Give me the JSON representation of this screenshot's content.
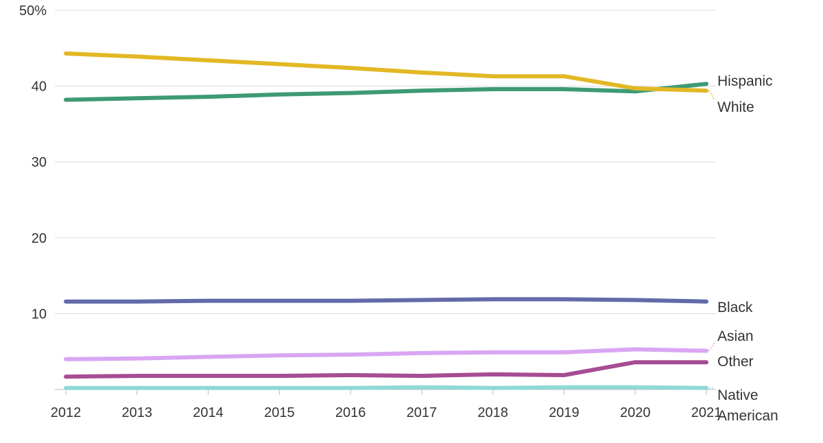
{
  "chart_data": {
    "type": "line",
    "title": "",
    "xlabel": "",
    "ylabel": "",
    "x": [
      "2012",
      "2013",
      "2014",
      "2015",
      "2016",
      "2017",
      "2018",
      "2019",
      "2020",
      "2021"
    ],
    "ylim": [
      0,
      50
    ],
    "yticks": [
      {
        "value": 0,
        "label": ""
      },
      {
        "value": 10,
        "label": "10"
      },
      {
        "value": 20,
        "label": "20"
      },
      {
        "value": 30,
        "label": "30"
      },
      {
        "value": 40,
        "label": "40"
      },
      {
        "value": 50,
        "label": "50%"
      }
    ],
    "grid": true,
    "legend": "direct labels at line ends",
    "series": [
      {
        "name": "White",
        "label_lines": [
          "White"
        ],
        "color": "#e2b824",
        "values": [
          44.3,
          43.9,
          43.4,
          42.9,
          42.4,
          41.8,
          41.3,
          41.3,
          39.7,
          39.4
        ]
      },
      {
        "name": "Hispanic",
        "label_lines": [
          "Hispanic"
        ],
        "color": "#3e9a74",
        "values": [
          38.2,
          38.4,
          38.6,
          38.9,
          39.1,
          39.4,
          39.6,
          39.6,
          39.3,
          40.3
        ]
      },
      {
        "name": "Black",
        "label_lines": [
          "Black"
        ],
        "color": "#626aaa",
        "values": [
          11.6,
          11.6,
          11.7,
          11.7,
          11.7,
          11.8,
          11.9,
          11.9,
          11.8,
          11.6
        ]
      },
      {
        "name": "Asian",
        "label_lines": [
          "Asian"
        ],
        "color": "#d9a6f3",
        "values": [
          4.0,
          4.1,
          4.3,
          4.5,
          4.6,
          4.8,
          4.9,
          4.9,
          5.3,
          5.1
        ]
      },
      {
        "name": "Other",
        "label_lines": [
          "Other"
        ],
        "color": "#a64d93",
        "values": [
          1.7,
          1.8,
          1.8,
          1.8,
          1.9,
          1.8,
          2.0,
          1.9,
          3.6,
          3.6
        ]
      },
      {
        "name": "Native American",
        "label_lines": [
          "Native",
          "American"
        ],
        "color": "#8edad4",
        "values": [
          0.2,
          0.2,
          0.2,
          0.2,
          0.2,
          0.3,
          0.2,
          0.3,
          0.3,
          0.2
        ]
      }
    ]
  }
}
